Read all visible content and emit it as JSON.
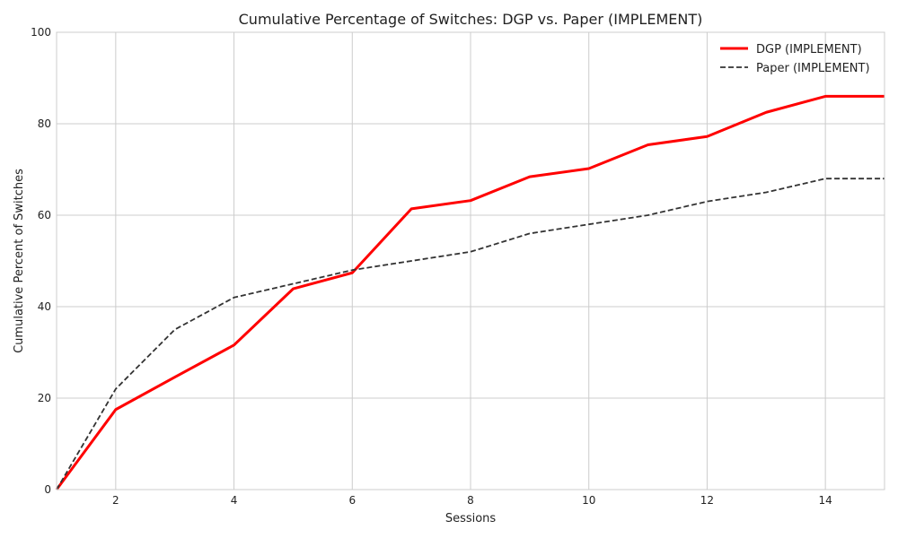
{
  "chart_data": {
    "type": "line",
    "title": "Cumulative Percentage of Switches: DGP vs. Paper (IMPLEMENT)",
    "xlabel": "Sessions",
    "ylabel": "Cumulative Percent of Switches",
    "xlim": [
      1,
      15
    ],
    "ylim": [
      0,
      100
    ],
    "xticks": [
      2,
      4,
      6,
      8,
      10,
      12,
      14
    ],
    "yticks": [
      0,
      20,
      40,
      60,
      80,
      100
    ],
    "grid": true,
    "legend_position": "top-right",
    "x": [
      1,
      2,
      3,
      4,
      5,
      6,
      7,
      8,
      9,
      10,
      11,
      12,
      13,
      14,
      15
    ],
    "series": [
      {
        "name": "DGP (IMPLEMENT)",
        "color": "#ff0000",
        "style": "solid",
        "values": [
          0,
          17.5,
          24.6,
          31.6,
          43.9,
          47.4,
          61.4,
          63.2,
          68.4,
          70.2,
          75.4,
          77.2,
          82.5,
          86.0,
          86.0
        ]
      },
      {
        "name": "Paper (IMPLEMENT)",
        "color": "#333333",
        "style": "dashed",
        "values": [
          0,
          22,
          35,
          42,
          45,
          48,
          50,
          52,
          56,
          58,
          60,
          63,
          65,
          68,
          68
        ]
      }
    ]
  }
}
